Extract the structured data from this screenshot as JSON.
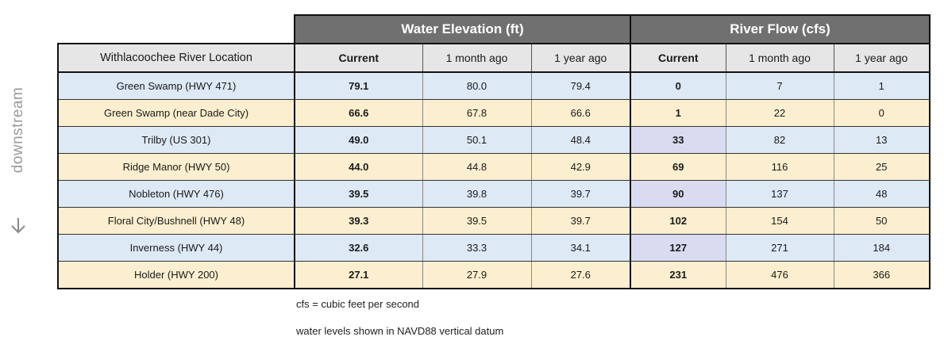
{
  "side": {
    "label": "downstream",
    "arrow_icon": "arrow-down-icon"
  },
  "table": {
    "group_headers": {
      "elevation": "Water Elevation (ft)",
      "flow": "River Flow (cfs)"
    },
    "columns": {
      "location": "Withlacoochee River Location",
      "elev_current": "Current",
      "elev_month": "1 month ago",
      "elev_year": "1 year ago",
      "flow_current": "Current",
      "flow_month": "1 month ago",
      "flow_year": "1 year ago"
    },
    "rows": [
      {
        "location": "Green Swamp (HWY 471)",
        "elev_current": "79.1",
        "elev_month": "80.0",
        "elev_year": "79.4",
        "flow_current": "0",
        "flow_month": "7",
        "flow_year": "1"
      },
      {
        "location": "Green Swamp (near Dade City)",
        "elev_current": "66.6",
        "elev_month": "67.8",
        "elev_year": "66.6",
        "flow_current": "1",
        "flow_month": "22",
        "flow_year": "0"
      },
      {
        "location": "Trilby (US 301)",
        "elev_current": "49.0",
        "elev_month": "50.1",
        "elev_year": "48.4",
        "flow_current": "33",
        "flow_month": "82",
        "flow_year": "13"
      },
      {
        "location": "Ridge Manor (HWY 50)",
        "elev_current": "44.0",
        "elev_month": "44.8",
        "elev_year": "42.9",
        "flow_current": "69",
        "flow_month": "116",
        "flow_year": "25"
      },
      {
        "location": "Nobleton (HWY 476)",
        "elev_current": "39.5",
        "elev_month": "39.8",
        "elev_year": "39.7",
        "flow_current": "90",
        "flow_month": "137",
        "flow_year": "48"
      },
      {
        "location": "Floral City/Bushnell (HWY 48)",
        "elev_current": "39.3",
        "elev_month": "39.5",
        "elev_year": "39.7",
        "flow_current": "102",
        "flow_month": "154",
        "flow_year": "50"
      },
      {
        "location": "Inverness (HWY 44)",
        "elev_current": "32.6",
        "elev_month": "33.3",
        "elev_year": "34.1",
        "flow_current": "127",
        "flow_month": "271",
        "flow_year": "184"
      },
      {
        "location": "Holder (HWY 200)",
        "elev_current": "27.1",
        "elev_month": "27.9",
        "elev_year": "27.6",
        "flow_current": "231",
        "flow_month": "476",
        "flow_year": "366"
      }
    ]
  },
  "notes": {
    "cfs": "cfs = cubic feet per second",
    "datum": "water levels shown in NAVD88 vertical datum"
  },
  "colors": {
    "header_gray": "#707070",
    "column_header": "#e6e6e6",
    "row_blue": "#dde9f5",
    "row_tan": "#fcefcf",
    "flow_highlight": "#d9dcf1"
  }
}
